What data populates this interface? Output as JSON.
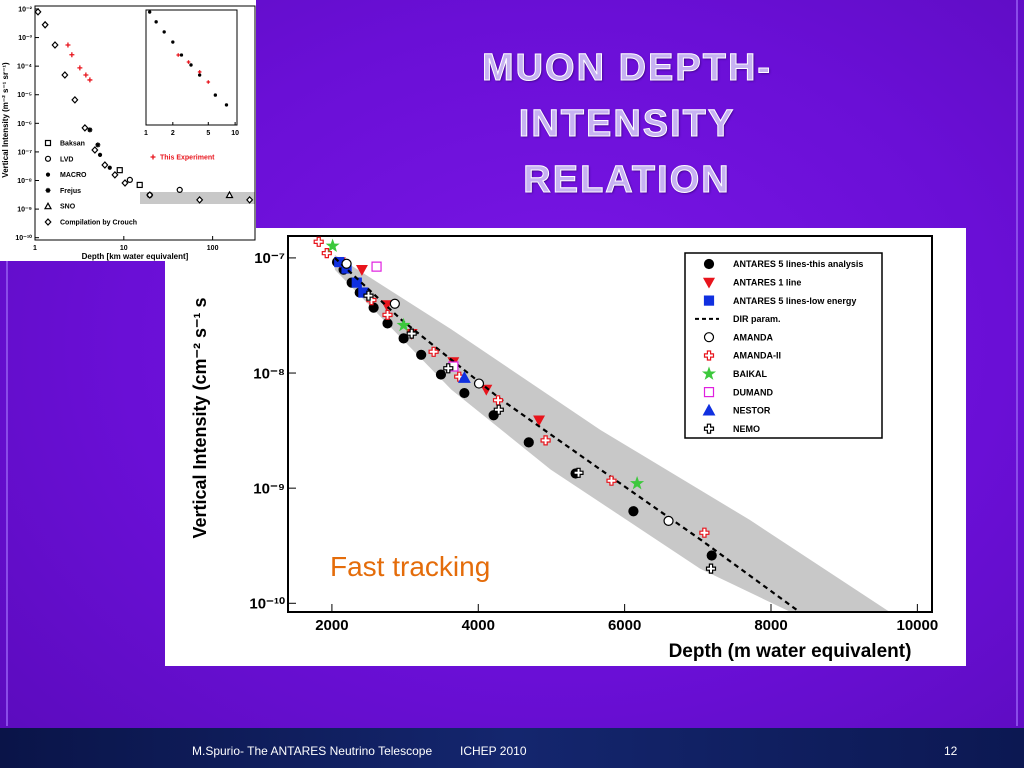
{
  "slide": {
    "title": "MUON DEPTH- INTENSITY RELATION",
    "footer_author": "M.Spurio- The ANTARES Neutrino Telescope",
    "footer_event": "ICHEP 2010",
    "page_number": "12"
  },
  "chart_data": [
    {
      "type": "scatter",
      "ylog": true,
      "xlabel": "Depth (m water equivalent)",
      "ylabel": "Vertical Intensity (cm⁻² s⁻¹ s",
      "annotation": "Fast tracking",
      "annotation_color": "#e46c0a",
      "xlim": [
        1400,
        10200
      ],
      "xticks": [
        2000,
        4000,
        6000,
        8000,
        10000
      ],
      "ylim": [
        8.4e-11,
        1.55e-07
      ],
      "yticks": [
        {
          "value": 1e-10,
          "label": "10⁻¹⁰"
        },
        {
          "value": 1e-09,
          "label": "10⁻⁹"
        },
        {
          "value": 1e-08,
          "label": "10⁻⁸"
        },
        {
          "value": 1e-07,
          "label": "10⁻⁷"
        }
      ],
      "legend": "upper-right",
      "band": {
        "color": "#c8c8c8",
        "x_upper": [
          2040,
          3630,
          5670,
          7710,
          9610
        ],
        "upper": [
          1.06e-07,
          2.4e-08,
          3.2e-09,
          5.3e-10,
          8.5e-11
        ],
        "x_lower": [
          2040,
          3630,
          4990,
          7030,
          8250
        ],
        "lower": [
          7.9e-08,
          7.2e-09,
          1.45e-09,
          2e-10,
          8.5e-11
        ]
      },
      "series": [
        {
          "name": "ANTARES 5 lines-this analysis",
          "color": "#000000",
          "marker": "circle",
          "x": [
            2070,
            2160,
            2270,
            2380,
            2570,
            2760,
            2980,
            3220,
            3490,
            3810,
            4210,
            4690,
            5330,
            6120,
            7190
          ],
          "values": [
            9.2e-08,
            7.9e-08,
            6.1e-08,
            5e-08,
            3.7e-08,
            2.7e-08,
            2e-08,
            1.44e-08,
            9.7e-09,
            6.7e-09,
            4.3e-09,
            2.5e-09,
            1.34e-09,
            6.3e-10,
            2.6e-10
          ]
        },
        {
          "name": "ANTARES 1 line",
          "color": "#e8141c",
          "marker": "triangle-down",
          "x": [
            2110,
            2410,
            2750,
            3090,
            3660,
            4110,
            4830
          ],
          "values": [
            9.2e-08,
            7.9e-08,
            3.9e-08,
            2.2e-08,
            1.25e-08,
            7.2e-09,
            3.9e-09
          ]
        },
        {
          "name": "ANTARES 5 lines-low energy",
          "color": "#1030e0",
          "marker": "square",
          "x": [
            2100,
            2200,
            2340,
            2430
          ],
          "values": [
            9.2e-08,
            8.1e-08,
            6.1e-08,
            5e-08
          ]
        },
        {
          "name": "DIR param.",
          "color": "#000000",
          "line": "dashed",
          "x": [
            2040,
            2950,
            4310,
            5670,
            7030,
            8380
          ],
          "values": [
            1e-07,
            2.9e-08,
            5.9e-09,
            1.45e-09,
            3.6e-10,
            8.5e-11
          ]
        },
        {
          "name": "AMANDA",
          "color": "#000000",
          "marker": "circle-open",
          "x": [
            2200,
            2860,
            4010,
            6600
          ],
          "values": [
            8.9e-08,
            4e-08,
            8.1e-09,
            5.2e-10
          ]
        },
        {
          "name": "AMANDA-II",
          "color": "#e8141c",
          "marker": "cross-open",
          "x": [
            1820,
            1930,
            2540,
            2760,
            3390,
            3740,
            4270,
            4920,
            5820,
            7090
          ],
          "values": [
            1.38e-07,
            1.1e-07,
            4.3e-08,
            3.2e-08,
            1.53e-08,
            9.3e-09,
            5.8e-09,
            2.6e-09,
            1.16e-09,
            4.1e-10
          ]
        },
        {
          "name": "BAIKAL",
          "color": "#3cc83c",
          "marker": "star",
          "x": [
            2010,
            2980,
            6170
          ],
          "values": [
            1.27e-07,
            2.6e-08,
            1.1e-09
          ]
        },
        {
          "name": "DUMAND",
          "color": "#e020e0",
          "marker": "square-open",
          "x": [
            2610,
            3660
          ],
          "values": [
            8.4e-08,
            1.14e-08
          ]
        },
        {
          "name": "NESTOR",
          "color": "#1030e0",
          "marker": "triangle-up",
          "x": [
            3810
          ],
          "values": [
            9.1e-09
          ]
        },
        {
          "name": "NEMO",
          "color": "#000000",
          "marker": "cross-open",
          "x": [
            2500,
            3090,
            3590,
            4280,
            5370,
            7180
          ],
          "values": [
            4.7e-08,
            2.2e-08,
            1.1e-08,
            4.8e-09,
            1.36e-09,
            2e-10
          ]
        }
      ]
    },
    {
      "type": "scatter",
      "xlog": true,
      "ylog": true,
      "xlabel": "Depth   [km water equivalent]",
      "ylabel": "Vertical Intensity   (m⁻² s⁻¹ sr⁻¹)",
      "xlim": [
        1,
        300
      ],
      "xticks": [
        1,
        10,
        100
      ],
      "ylim": [
        8.3e-11,
        0.0127
      ],
      "yticks": [
        {
          "value": 1e-10,
          "label": "10⁻¹⁰"
        },
        {
          "value": 1e-09,
          "label": "10⁻⁹"
        },
        {
          "value": 1e-08,
          "label": "10⁻⁸"
        },
        {
          "value": 1e-07,
          "label": "10⁻⁷"
        },
        {
          "value": 1e-06,
          "label": "10⁻⁶"
        },
        {
          "value": 1e-05,
          "label": "10⁻⁵"
        },
        {
          "value": 0.0001,
          "label": "10⁻⁴"
        },
        {
          "value": 0.001,
          "label": "10⁻³"
        },
        {
          "value": 0.01,
          "label": "10⁻²"
        }
      ],
      "series": [
        {
          "name": "Baksan",
          "color": "#000000",
          "marker": "square-open",
          "x": [
            9.0,
            15.1
          ],
          "values": [
            2.3e-08,
            7e-09
          ]
        },
        {
          "name": "LVD",
          "color": "#000000",
          "marker": "circle-open",
          "x": [
            11.7,
            19.6,
            42.6
          ],
          "values": [
            1.05e-08,
            3.1e-09,
            4.7e-09
          ]
        },
        {
          "name": "MACRO",
          "color": "#000000",
          "marker": "dot",
          "x": [
            5.4,
            6.95
          ],
          "values": [
            7.9e-08,
            2.8e-08
          ]
        },
        {
          "name": "Frejus",
          "color": "#000000",
          "marker": "asterisk",
          "x": [
            4.15,
            5.1
          ],
          "values": [
            5.9e-07,
            1.76e-07
          ]
        },
        {
          "name": "SNO",
          "color": "#000000",
          "marker": "triangle-open",
          "x": [
            155
          ],
          "values": [
            3.1e-09
          ]
        },
        {
          "name": "Compilation by Crouch",
          "color": "#000000",
          "marker": "diamond-open",
          "x": [
            1.08,
            1.3,
            1.68,
            2.17,
            2.81,
            3.65,
            4.72,
            6.12,
            7.94,
            10.3,
            19.6,
            71.4,
            261
          ],
          "values": [
            0.0079,
            0.0028,
            0.00055,
            4.9e-05,
            6.6e-06,
            6.9e-07,
            1.17e-07,
            3.5e-08,
            1.57e-08,
            8.2e-09,
            3.1e-09,
            2.1e-09,
            2.1e-09
          ]
        },
        {
          "name": "This Experiment",
          "color": "#e8141c",
          "marker": "plus",
          "x": [
            2.35,
            2.6,
            3.2,
            3.74,
            4.15
          ],
          "values": [
            0.00055,
            0.00025,
            8.7e-05,
            4.9e-05,
            3.3e-05
          ]
        }
      ]
    },
    {
      "type": "scatter",
      "xlog": true,
      "ylog": true,
      "xlim": [
        1,
        10.5
      ],
      "xticks": [
        1,
        2,
        5,
        10
      ],
      "ylim": [
        1e-10,
        0.01
      ],
      "series": [
        {
          "color": "#000000",
          "marker": "dot",
          "x": [
            1.1,
            1.3,
            1.6,
            2.0,
            2.5,
            3.2,
            4.0,
            6.0,
            8.0
          ],
          "values": [
            0.0072,
            0.0015,
            0.0003,
            5.9e-05,
            7.4e-06,
            1.5e-06,
            3e-07,
            1.2e-08,
            2.5e-09
          ]
        },
        {
          "color": "#e8141c",
          "marker": "plus",
          "x": [
            2.3,
            3.0,
            4.0,
            5.0
          ],
          "values": [
            7.4e-06,
            2.4e-06,
            4.9e-07,
            9.8e-08
          ]
        }
      ]
    }
  ]
}
